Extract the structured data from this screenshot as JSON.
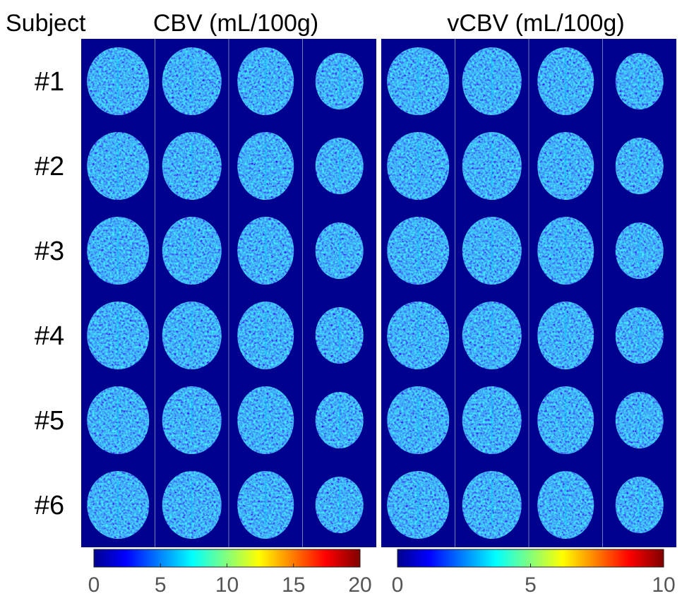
{
  "header": {
    "subject_label": "Subject"
  },
  "rows": [
    "#1",
    "#2",
    "#3",
    "#4",
    "#5",
    "#6"
  ],
  "panels": [
    {
      "title": "CBV (mL/100g)",
      "colorbar": {
        "lim": [
          0,
          20
        ],
        "ticks": [
          0,
          5,
          10,
          15,
          20
        ]
      }
    },
    {
      "title": "vCBV (mL/100g)",
      "colorbar": {
        "lim": [
          0,
          10
        ],
        "ticks": [
          0,
          5,
          10
        ]
      }
    }
  ]
}
